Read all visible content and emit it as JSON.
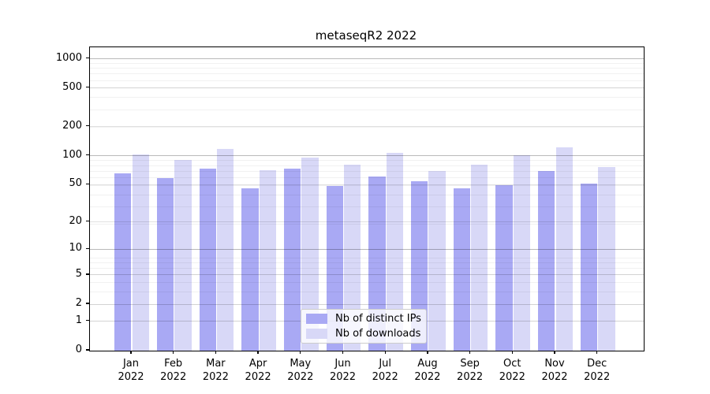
{
  "title": "metaseqR2 2022",
  "chart_data": {
    "type": "bar",
    "title": "metaseqR2 2022",
    "categories": [
      "Jan",
      "Feb",
      "Mar",
      "Apr",
      "May",
      "Jun",
      "Jul",
      "Aug",
      "Sep",
      "Oct",
      "Nov",
      "Dec"
    ],
    "category_year": "2022",
    "series": [
      {
        "name": "Nb of distinct IPs",
        "color": "#a9a9f4",
        "values": [
          65,
          59,
          74,
          46,
          73,
          48,
          61,
          54,
          46,
          49,
          70,
          51
        ]
      },
      {
        "name": "Nb of downloads",
        "color": "#d8d8f7",
        "values": [
          103,
          90,
          118,
          71,
          95,
          81,
          108,
          70,
          81,
          101,
          123,
          76
        ]
      }
    ],
    "yscale": "symlog: position proportional to log10(value+1)",
    "yticks": [
      0,
      1,
      2,
      5,
      10,
      20,
      50,
      100,
      200,
      500,
      1000
    ],
    "yticks_emphasized": [
      10,
      100,
      1000
    ],
    "yticks_minor": [
      1,
      2,
      3,
      4,
      5,
      6,
      7,
      8,
      19,
      29,
      39,
      49,
      59,
      69,
      79,
      89,
      199,
      299,
      399,
      499,
      599,
      699,
      799,
      899
    ],
    "ylim": [
      0,
      1310
    ],
    "grid": "horizontal major+minor, drawn over bars",
    "legend_position": "inside plot, bottom center"
  }
}
